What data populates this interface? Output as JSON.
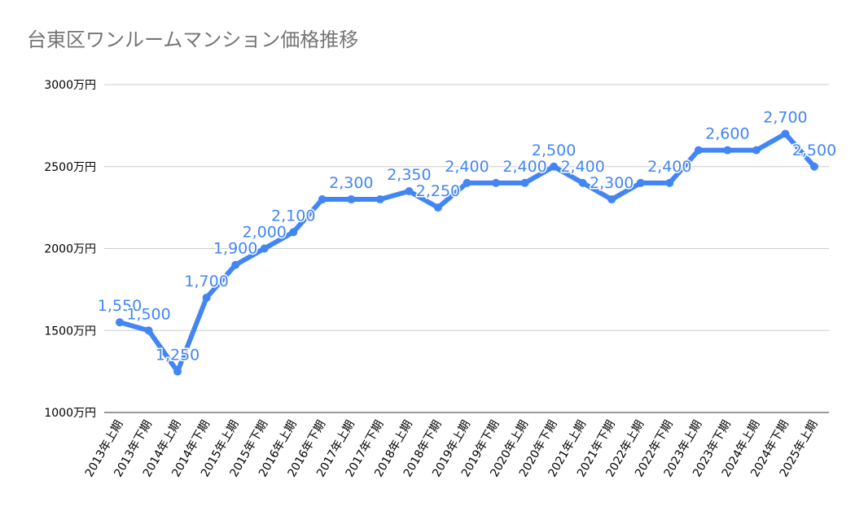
{
  "chart_data": {
    "type": "line",
    "title": "台東区ワンルームマンション価格推移",
    "xlabel": "",
    "ylabel": "",
    "categories": [
      "2013年上期",
      "2013年下期",
      "2014年上期",
      "2014年下期",
      "2015年上期",
      "2015年下期",
      "2016年上期",
      "2016年下期",
      "2017年上期",
      "2017年下期",
      "2018年上期",
      "2018年下期",
      "2019年上期",
      "2019年下期",
      "2020年上期",
      "2020年下期",
      "2021年上期",
      "2021年下期",
      "2022年上期",
      "2022年下期",
      "2023年上期",
      "2023年下期",
      "2024年上期",
      "2024年下期",
      "2025年上期"
    ],
    "values": [
      1550,
      1500,
      1250,
      1700,
      1900,
      2000,
      2100,
      2300,
      2300,
      2300,
      2350,
      2250,
      2400,
      2400,
      2400,
      2500,
      2400,
      2300,
      2400,
      2400,
      2600,
      2600,
      2600,
      2700,
      2500
    ],
    "data_labels_shown": [
      0,
      1,
      2,
      3,
      4,
      5,
      6,
      8,
      10,
      11,
      12,
      14,
      15,
      16,
      17,
      19,
      21,
      23,
      24
    ],
    "ylim": [
      1000,
      3000
    ],
    "yticks": [
      1000,
      1500,
      2000,
      2500,
      3000
    ],
    "ytick_labels": [
      "1000万円",
      "1500万円",
      "2000万円",
      "2500万円",
      "3000万円"
    ],
    "grid": true,
    "legend": "none",
    "colors": {
      "line": "#4285f4",
      "label": "#4285f4",
      "title": "#757575",
      "grid": "#cccccc"
    }
  }
}
